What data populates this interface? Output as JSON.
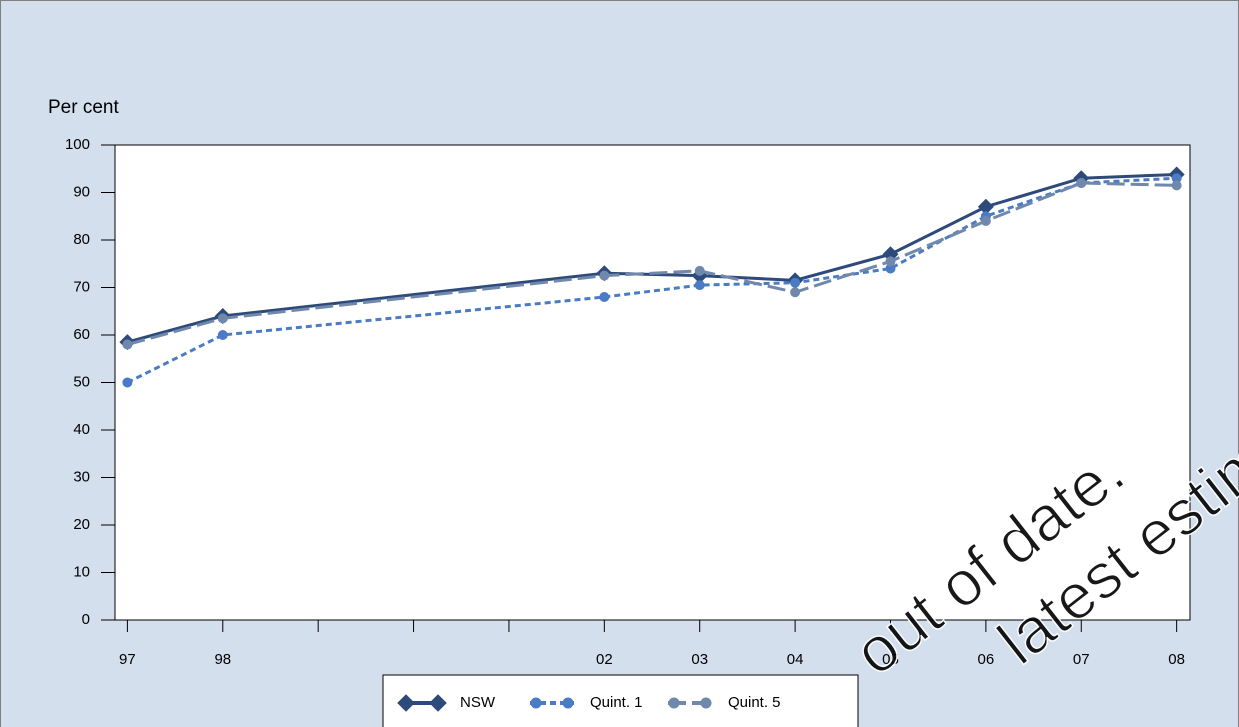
{
  "chart_data": {
    "type": "line",
    "y_label": "Per cent",
    "x": [
      1997,
      1998,
      2002,
      2003,
      2004,
      2005,
      2006,
      2007,
      2008
    ],
    "xlim": [
      1996.87,
      2008.14
    ],
    "xticks": [
      {
        "value": 1997,
        "label": "97"
      },
      {
        "value": 1998,
        "label": "98"
      },
      {
        "value": 1999,
        "label": null
      },
      {
        "value": 2000,
        "label": null
      },
      {
        "value": 2001,
        "label": null
      },
      {
        "value": 2002,
        "label": "02"
      },
      {
        "value": 2003,
        "label": "03"
      },
      {
        "value": 2004,
        "label": "04"
      },
      {
        "value": 2005,
        "label": "05"
      },
      {
        "value": 2006,
        "label": "06"
      },
      {
        "value": 2007,
        "label": "07"
      },
      {
        "value": 2008,
        "label": "08"
      }
    ],
    "ylim": [
      0,
      100
    ],
    "yticks": [
      0,
      10,
      20,
      30,
      40,
      50,
      60,
      70,
      80,
      90,
      100
    ],
    "series": [
      {
        "name": "NSW",
        "color": "#2e4a7a",
        "values": [
          58.5,
          64,
          73,
          72.5,
          71.5,
          77,
          87,
          93,
          93.8
        ]
      },
      {
        "name": "Quint. 1",
        "color": "#4a7bc4",
        "values": [
          50,
          60,
          68,
          70.5,
          71,
          74,
          85,
          92,
          93
        ]
      },
      {
        "name": "Quint. 5",
        "color": "#7088ab",
        "values": [
          58,
          63.5,
          72.5,
          73.5,
          69,
          75.5,
          84,
          92,
          91.5
        ]
      }
    ],
    "watermark": [
      "out of date.",
      "latest estimates."
    ]
  }
}
